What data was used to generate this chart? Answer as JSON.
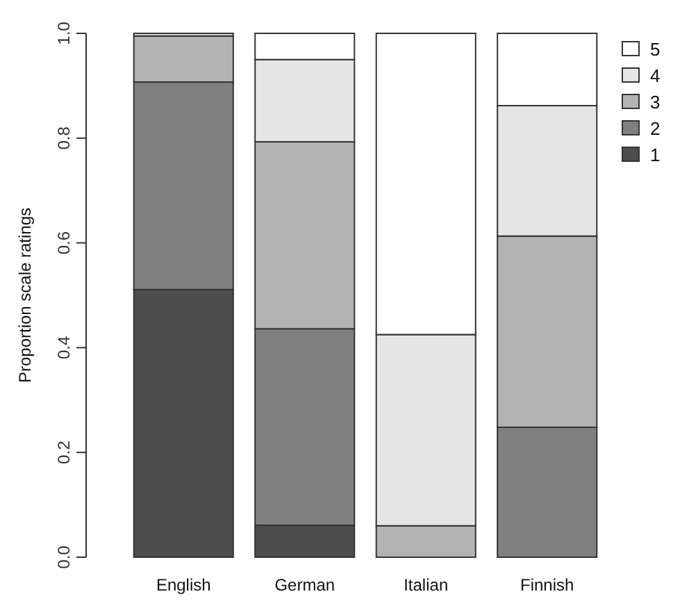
{
  "chart_data": {
    "type": "bar",
    "stacked": true,
    "ylabel": "Proportion scale ratings",
    "categories": [
      "English",
      "German",
      "Italian",
      "Finnish"
    ],
    "series": [
      {
        "name": "1",
        "color": "#4d4d4d",
        "values": [
          0.511,
          0.061,
          0,
          0
        ]
      },
      {
        "name": "2",
        "color": "#808080",
        "values": [
          0.396,
          0.375,
          0,
          0.248
        ]
      },
      {
        "name": "3",
        "color": "#b3b3b3",
        "values": [
          0.088,
          0.357,
          0.06,
          0.365
        ]
      },
      {
        "name": "4",
        "color": "#e6e6e6",
        "values": [
          0.005,
          0.157,
          0.365,
          0.249
        ]
      },
      {
        "name": "5",
        "color": "#ffffff",
        "values": [
          null,
          0.05,
          0.575,
          0.138
        ]
      }
    ],
    "ylim": [
      0,
      1
    ],
    "yticks": [
      {
        "value": 0,
        "label": "0.0"
      },
      {
        "value": 0.2,
        "label": "0.2"
      },
      {
        "value": 0.4,
        "label": "0.4"
      },
      {
        "value": 0.6,
        "label": "0.6"
      },
      {
        "value": 0.8,
        "label": "0.8"
      },
      {
        "value": 1,
        "label": "1.0"
      }
    ],
    "legend": "right"
  }
}
